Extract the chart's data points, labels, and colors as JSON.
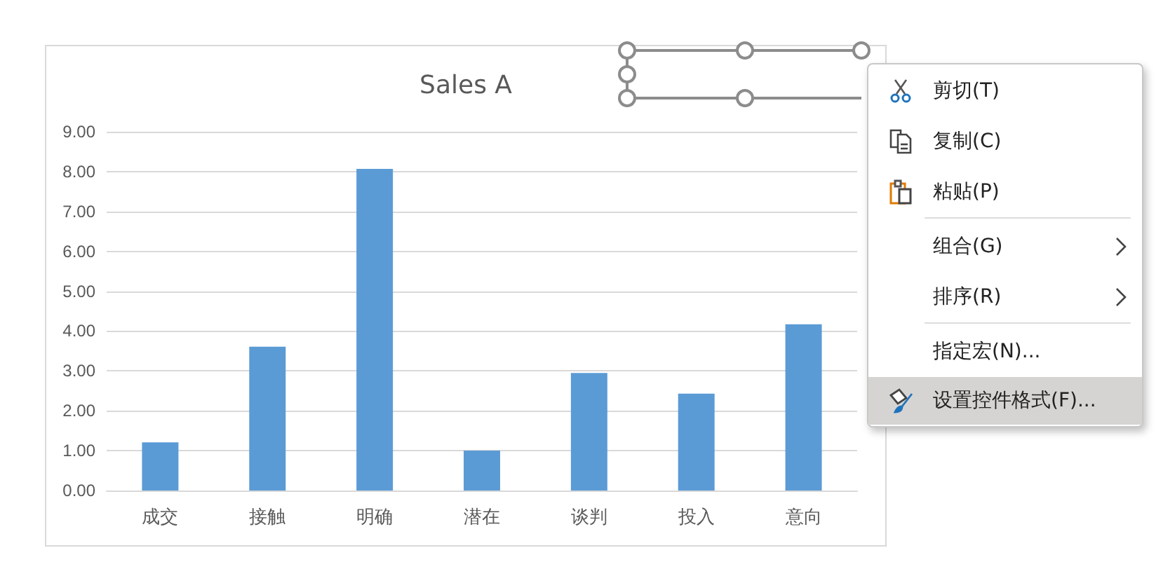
{
  "chart_data": {
    "type": "bar",
    "title": "Sales A",
    "categories": [
      "成交",
      "接触",
      "明确",
      "潜在",
      "谈判",
      "投入",
      "意向"
    ],
    "values": [
      1.21,
      3.61,
      8.07,
      1.0,
      2.95,
      2.43,
      4.17
    ],
    "color": "#5b9bd5",
    "ylim": [
      0,
      9
    ],
    "yticks": [
      {
        "value": 0,
        "label": "0.00"
      },
      {
        "value": 1,
        "label": "1.00"
      },
      {
        "value": 2,
        "label": "2.00"
      },
      {
        "value": 3,
        "label": "3.00"
      },
      {
        "value": 4,
        "label": "4.00"
      },
      {
        "value": 5,
        "label": "5.00"
      },
      {
        "value": 6,
        "label": "6.00"
      },
      {
        "value": 7,
        "label": "7.00"
      },
      {
        "value": 8,
        "label": "8.00"
      },
      {
        "value": 9,
        "label": "9.00"
      }
    ],
    "grid": "y",
    "annotations": [
      "剪切(T)",
      "复制(C)",
      "粘贴(P)",
      "组合(G)",
      "排序(R)",
      "指定宏(N)...",
      "设置控件格式(F)..."
    ]
  }
}
